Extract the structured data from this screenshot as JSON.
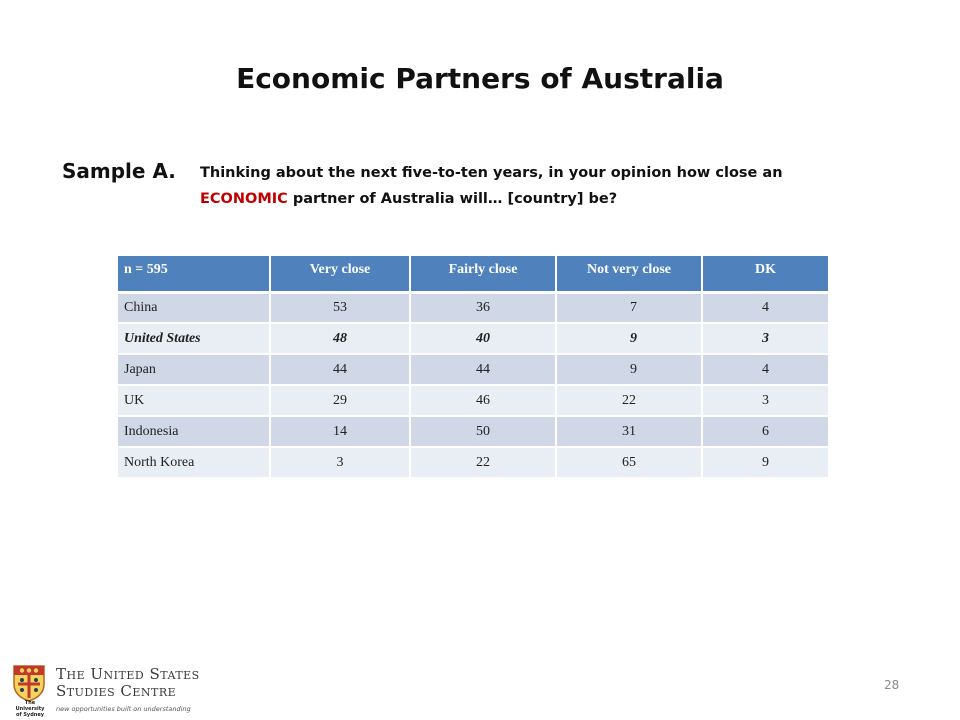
{
  "title": "Economic Partners of Australia",
  "sample_label": "Sample A.",
  "question": {
    "line1": "Thinking about the next five-to-ten years, in your opinion how close an",
    "highlight": "ECONOMIC",
    "line2_rest": " partner of Australia will… [country] be?"
  },
  "colors": {
    "header_bg": "#4f81bd",
    "row_odd": "#d0d8e8",
    "row_even": "#e9edf4",
    "highlight": "#c00000"
  },
  "table": {
    "headers": [
      "n = 595",
      "Very close",
      "Fairly close",
      "Not very close",
      "DK"
    ],
    "rows": [
      [
        "China",
        "53",
        "36",
        "7",
        "4"
      ],
      [
        "United States",
        "48",
        "40",
        "9",
        "3"
      ],
      [
        "Japan",
        "44",
        "44",
        "9",
        "4"
      ],
      [
        "UK",
        "29",
        "46",
        "22",
        "3"
      ],
      [
        "Indonesia",
        "14",
        "50",
        "31",
        "6"
      ],
      [
        "North Korea",
        "3",
        "22",
        "65",
        "9"
      ]
    ]
  },
  "footer": {
    "crest_text_1": "The",
    "crest_text_2": "University",
    "crest_text_3": "of Sydney",
    "org_line1": "The United States",
    "org_line2": "Studies Centre",
    "tagline": "new opportunities built on understanding",
    "page_number": "28"
  }
}
